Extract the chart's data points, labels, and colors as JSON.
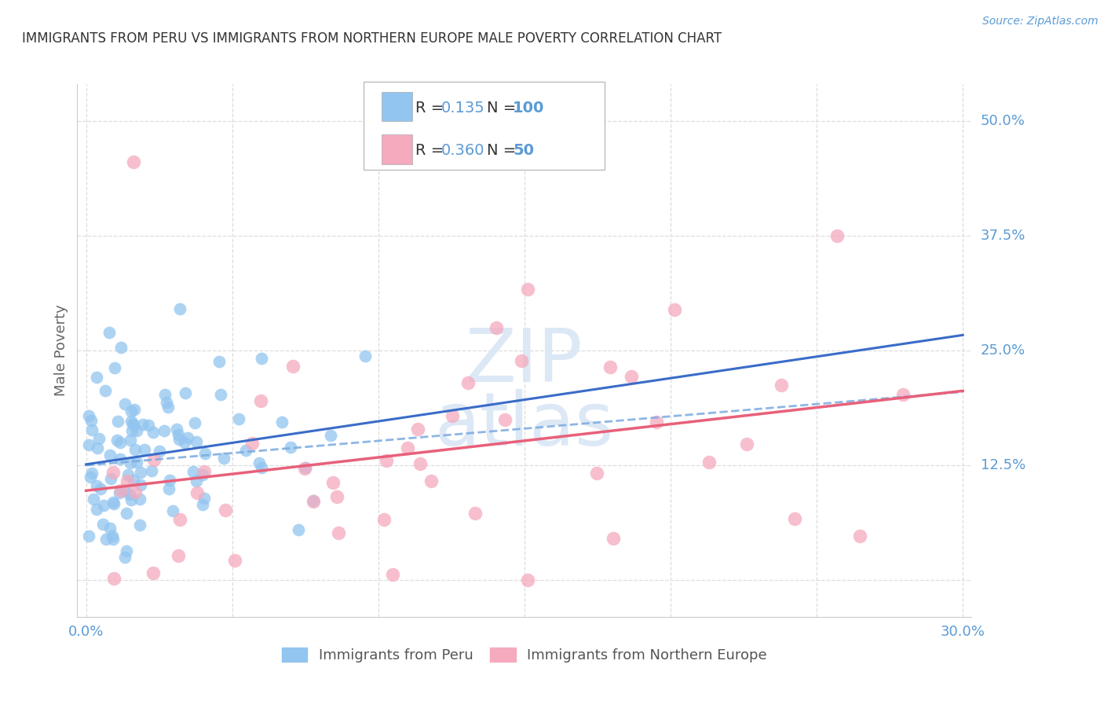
{
  "title": "IMMIGRANTS FROM PERU VS IMMIGRANTS FROM NORTHERN EUROPE MALE POVERTY CORRELATION CHART",
  "source": "Source: ZipAtlas.com",
  "ylabel": "Male Poverty",
  "blue_color": "#92C5F0",
  "pink_color": "#F5AABE",
  "blue_line_color": "#3A6CC8",
  "pink_line_color": "#E8607A",
  "blue_dash_color": "#7AAAE0",
  "right_label_color": "#5B9BD5",
  "tick_label_color": "#5B9BD5",
  "ylabel_color": "#666666",
  "title_color": "#333333",
  "source_color": "#5B9BD5",
  "legend_text_color": "#5B9BD5",
  "grid_color": "#DDDDDD",
  "legend_blue_label": "Immigrants from Peru",
  "legend_pink_label": "Immigrants from Northern Europe",
  "R_blue": 0.135,
  "N_blue": 100,
  "R_pink": 0.36,
  "N_pink": 50,
  "background_color": "#FFFFFF",
  "watermark_color": "#DCE8F5"
}
